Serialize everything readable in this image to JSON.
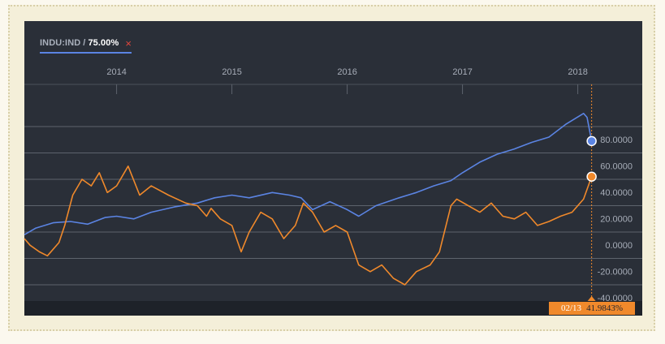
{
  "legend": {
    "symbol": "INDU:IND",
    "separator": "/",
    "percent": "75.00%",
    "close_icon": "×"
  },
  "tooltip": {
    "date": "02/13",
    "value": "41.9843%"
  },
  "colors": {
    "background": "#2a2f38",
    "blue_series": "#5b84e3",
    "orange_series": "#f0892b",
    "grid": "#5d636d"
  },
  "chart_data": {
    "type": "line",
    "x_ticks": [
      "2014",
      "2015",
      "2016",
      "2017",
      "2018"
    ],
    "y_ticks": [
      "80.0000",
      "60.0000",
      "40.0000",
      "20.0000",
      "0.0000",
      "-20.0000",
      "-40.0000"
    ],
    "ylim": [
      -50,
      100
    ],
    "xlim": [
      2013.2,
      2018.2
    ],
    "series": [
      {
        "color": "#5b84e3",
        "x": [
          2013.2,
          2013.3,
          2013.45,
          2013.6,
          2013.75,
          2013.9,
          2014.0,
          2014.15,
          2014.3,
          2014.5,
          2014.7,
          2014.85,
          2015.0,
          2015.15,
          2015.35,
          2015.5,
          2015.6,
          2015.7,
          2015.85,
          2016.0,
          2016.1,
          2016.25,
          2016.45,
          2016.6,
          2016.75,
          2016.9,
          2017.0,
          2017.15,
          2017.3,
          2017.45,
          2017.6,
          2017.75,
          2017.9,
          2018.05,
          2018.08,
          2018.12
        ],
        "y": [
          -2,
          3,
          7,
          8,
          6,
          11,
          12,
          10,
          15,
          19,
          22,
          26,
          28,
          26,
          30,
          28,
          26,
          17,
          23,
          17,
          12,
          20,
          26,
          30,
          35,
          39,
          45,
          53,
          59,
          63,
          68,
          72,
          82,
          90,
          87,
          69
        ]
      },
      {
        "color": "#f0892b",
        "x": [
          2013.2,
          2013.25,
          2013.33,
          2013.4,
          2013.5,
          2013.55,
          2013.62,
          2013.7,
          2013.78,
          2013.85,
          2013.92,
          2014.0,
          2014.1,
          2014.2,
          2014.3,
          2014.45,
          2014.6,
          2014.7,
          2014.78,
          2014.82,
          2014.9,
          2015.0,
          2015.08,
          2015.15,
          2015.25,
          2015.35,
          2015.45,
          2015.55,
          2015.62,
          2015.7,
          2015.8,
          2015.9,
          2016.0,
          2016.1,
          2016.2,
          2016.3,
          2016.4,
          2016.5,
          2016.6,
          2016.72,
          2016.8,
          2016.9,
          2016.95,
          2017.05,
          2017.15,
          2017.25,
          2017.35,
          2017.45,
          2017.55,
          2017.65,
          2017.75,
          2017.85,
          2017.95,
          2018.05,
          2018.12
        ],
        "y": [
          -5,
          -10,
          -15,
          -18,
          -8,
          5,
          28,
          40,
          35,
          45,
          30,
          35,
          50,
          28,
          35,
          28,
          22,
          20,
          12,
          18,
          10,
          5,
          -15,
          0,
          15,
          10,
          -5,
          5,
          22,
          15,
          0,
          5,
          0,
          -25,
          -30,
          -25,
          -35,
          -40,
          -30,
          -25,
          -15,
          20,
          25,
          20,
          15,
          22,
          12,
          10,
          15,
          5,
          8,
          12,
          15,
          25,
          42
        ]
      }
    ]
  }
}
